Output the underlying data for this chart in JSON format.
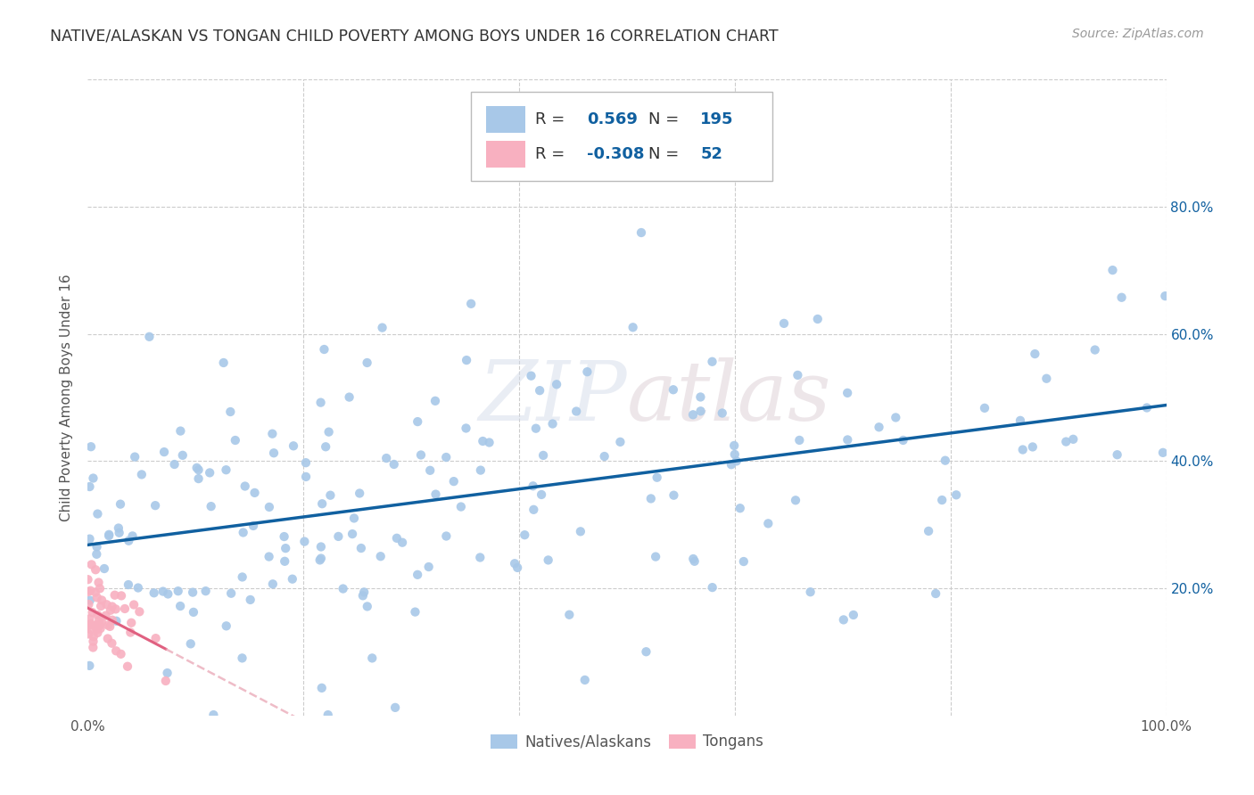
{
  "title": "NATIVE/ALASKAN VS TONGAN CHILD POVERTY AMONG BOYS UNDER 16 CORRELATION CHART",
  "source": "Source: ZipAtlas.com",
  "ylabel": "Child Poverty Among Boys Under 16",
  "xlim": [
    0.0,
    1.0
  ],
  "ylim": [
    0.0,
    1.0
  ],
  "xticks": [
    0.0,
    0.2,
    0.4,
    0.6,
    0.8,
    1.0
  ],
  "yticks": [
    0.0,
    0.2,
    0.4,
    0.6,
    0.8,
    1.0
  ],
  "xticklabels": [
    "0.0%",
    "",
    "",
    "",
    "",
    "100.0%"
  ],
  "left_yticklabels": [
    "",
    "",
    "",
    "",
    "",
    ""
  ],
  "right_yticklabels": [
    "",
    "20.0%",
    "40.0%",
    "60.0%",
    "80.0%",
    ""
  ],
  "blue_color": "#a8c8e8",
  "blue_line_color": "#1060a0",
  "pink_color": "#f8b0c0",
  "pink_line_color": "#e06080",
  "pink_dash_color": "#e8a0b0",
  "watermark": "ZIPatlas",
  "legend_r_blue": "0.569",
  "legend_n_blue": "195",
  "legend_r_pink": "-0.308",
  "legend_n_pink": "52",
  "blue_scatter_seed": 42,
  "pink_scatter_seed": 7,
  "background_color": "#ffffff",
  "grid_color": "#cccccc",
  "title_color": "#333333",
  "axis_label_color": "#555555",
  "right_ytick_color": "#1060a0",
  "legend_label_blue": "Natives/Alaskans",
  "legend_label_pink": "Tongans"
}
